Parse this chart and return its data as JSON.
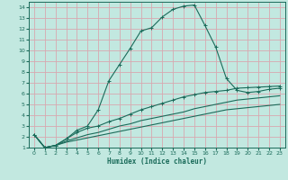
{
  "title": "",
  "xlabel": "Humidex (Indice chaleur)",
  "bg_color": "#c2e8e0",
  "grid_color": "#d8a8b0",
  "line_color": "#1a6b5a",
  "xlim": [
    -0.5,
    23.5
  ],
  "ylim": [
    1,
    14.5
  ],
  "xticks": [
    0,
    1,
    2,
    3,
    4,
    5,
    6,
    7,
    8,
    9,
    10,
    11,
    12,
    13,
    14,
    15,
    16,
    17,
    18,
    19,
    20,
    21,
    22,
    23
  ],
  "yticks": [
    1,
    2,
    3,
    4,
    5,
    6,
    7,
    8,
    9,
    10,
    11,
    12,
    13,
    14
  ],
  "line1_x": [
    0,
    1,
    2,
    3,
    4,
    5,
    6,
    7,
    8,
    9,
    10,
    11,
    12,
    13,
    14,
    15,
    16,
    17,
    18,
    19,
    20,
    21,
    22,
    23
  ],
  "line1_y": [
    2.2,
    1.0,
    1.2,
    1.8,
    2.6,
    3.0,
    4.5,
    7.2,
    8.7,
    10.2,
    11.8,
    12.1,
    13.1,
    13.8,
    14.1,
    14.2,
    12.3,
    10.3,
    7.4,
    6.3,
    6.1,
    6.2,
    6.4,
    6.5
  ],
  "line2_x": [
    0,
    1,
    2,
    3,
    4,
    5,
    6,
    7,
    8,
    9,
    10,
    11,
    12,
    13,
    14,
    15,
    16,
    17,
    18,
    19,
    20,
    21,
    22,
    23
  ],
  "line2_y": [
    2.2,
    1.0,
    1.2,
    1.8,
    2.4,
    2.8,
    3.0,
    3.4,
    3.7,
    4.1,
    4.5,
    4.8,
    5.1,
    5.4,
    5.7,
    5.9,
    6.1,
    6.2,
    6.3,
    6.5,
    6.55,
    6.6,
    6.65,
    6.7
  ],
  "line3_x": [
    0,
    1,
    2,
    3,
    4,
    5,
    6,
    7,
    8,
    9,
    10,
    11,
    12,
    13,
    14,
    15,
    16,
    17,
    18,
    19,
    20,
    21,
    22,
    23
  ],
  "line3_y": [
    2.2,
    1.0,
    1.2,
    1.6,
    1.9,
    2.2,
    2.4,
    2.7,
    3.0,
    3.2,
    3.5,
    3.7,
    3.9,
    4.1,
    4.3,
    4.6,
    4.8,
    5.0,
    5.2,
    5.4,
    5.5,
    5.6,
    5.7,
    5.8
  ],
  "line4_x": [
    0,
    1,
    2,
    3,
    4,
    5,
    6,
    7,
    8,
    9,
    10,
    11,
    12,
    13,
    14,
    15,
    16,
    17,
    18,
    19,
    20,
    21,
    22,
    23
  ],
  "line4_y": [
    2.2,
    1.0,
    1.2,
    1.5,
    1.7,
    1.9,
    2.1,
    2.3,
    2.5,
    2.7,
    2.9,
    3.1,
    3.3,
    3.5,
    3.7,
    3.9,
    4.1,
    4.3,
    4.5,
    4.6,
    4.7,
    4.8,
    4.9,
    5.0
  ]
}
